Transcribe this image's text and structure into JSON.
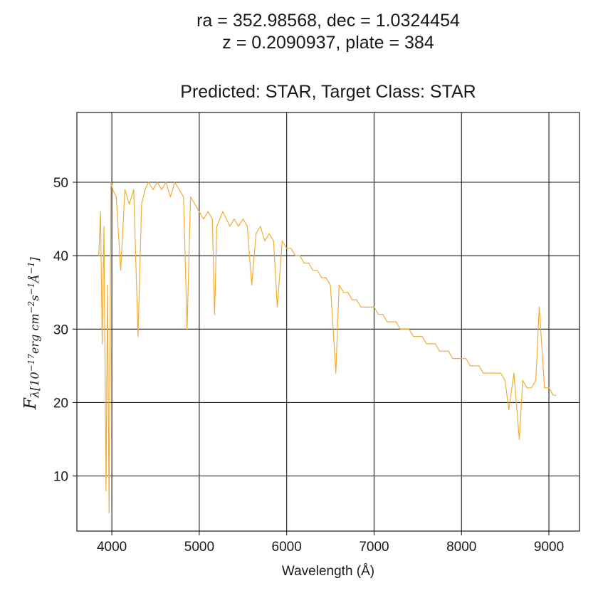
{
  "chart_data": {
    "type": "line",
    "title_lines": [
      "ra = 352.98568, dec = 1.0324454",
      "z = 0.2090937, plate = 384"
    ],
    "subtitle": "Predicted: STAR, Target Class: STAR",
    "xlabel": "Wavelength (Å)",
    "ylabel": "F_λ[10^-17 erg cm^-2 s^-1 Å^-1]",
    "xlim": [
      3600,
      9350
    ],
    "ylim": [
      2.5,
      59.5
    ],
    "xticks": [
      4000,
      5000,
      6000,
      7000,
      8000,
      9000
    ],
    "yticks": [
      10,
      20,
      30,
      40,
      50
    ],
    "grid": true,
    "line_color": "#f0ad36",
    "series": [
      {
        "x": [
          3850,
          3870,
          3890,
          3910,
          3933,
          3950,
          3968,
          3990,
          4010,
          4050,
          4101,
          4150,
          4200,
          4250,
          4300,
          4340,
          4380,
          4420,
          4470,
          4520,
          4570,
          4620,
          4670,
          4720,
          4770,
          4820,
          4861,
          4900,
          4950,
          5000,
          5050,
          5100,
          5150,
          5175,
          5200,
          5270,
          5350,
          5400,
          5450,
          5500,
          5550,
          5600,
          5650,
          5700,
          5750,
          5800,
          5850,
          5893,
          5950,
          6000,
          6050,
          6100,
          6150,
          6200,
          6250,
          6300,
          6350,
          6400,
          6450,
          6500,
          6563,
          6600,
          6650,
          6700,
          6750,
          6800,
          6850,
          6900,
          6950,
          7000,
          7050,
          7100,
          7150,
          7200,
          7250,
          7300,
          7350,
          7400,
          7450,
          7500,
          7550,
          7600,
          7650,
          7700,
          7750,
          7800,
          7850,
          7900,
          7950,
          8000,
          8050,
          8100,
          8150,
          8200,
          8250,
          8300,
          8350,
          8400,
          8450,
          8498,
          8542,
          8600,
          8662,
          8700,
          8750,
          8800,
          8850,
          8890,
          8950,
          9000,
          9050,
          9080
        ],
        "y": [
          40,
          46,
          28,
          44,
          8,
          36,
          5,
          50,
          49,
          48,
          38,
          49,
          47,
          49,
          29,
          47,
          49,
          50,
          49,
          50,
          49,
          50,
          48,
          50,
          49,
          48,
          30,
          48,
          47,
          46,
          45,
          46,
          45,
          32,
          44,
          46,
          44,
          45,
          44,
          45,
          44,
          36,
          43,
          44,
          42,
          43,
          42,
          33,
          42,
          41,
          41,
          40,
          40,
          39,
          39,
          38,
          38,
          37,
          37,
          36,
          24,
          36,
          35,
          35,
          34,
          34,
          33,
          33,
          33,
          33,
          32,
          32,
          31,
          31,
          31,
          30,
          30,
          30,
          29,
          29,
          29,
          28,
          28,
          28,
          27,
          27,
          27,
          26,
          26,
          26,
          26,
          25,
          25,
          25,
          24,
          24,
          24,
          24,
          24,
          23,
          19,
          24,
          15,
          23,
          22,
          22,
          23,
          33,
          22,
          22,
          21,
          21
        ]
      }
    ]
  }
}
